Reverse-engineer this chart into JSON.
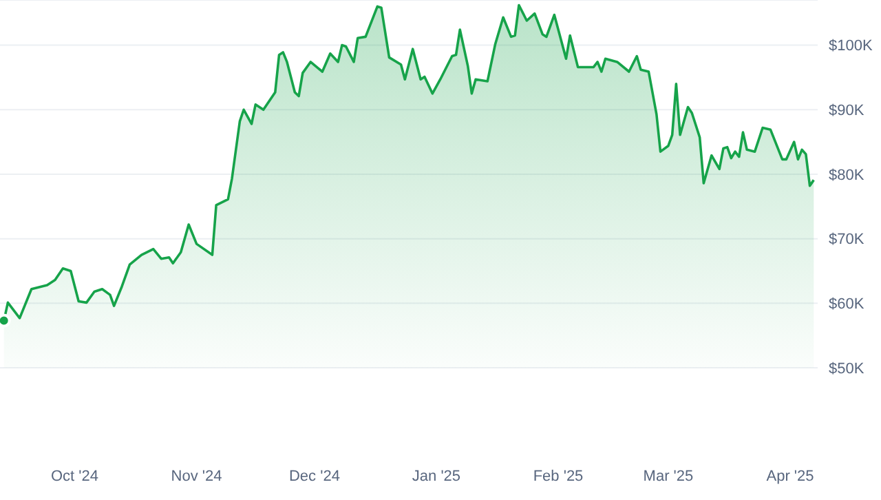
{
  "chart_data": {
    "type": "area",
    "x": [
      "2024-09-13",
      "2024-09-14",
      "2024-09-17",
      "2024-09-20",
      "2024-09-24",
      "2024-09-25",
      "2024-09-26",
      "2024-09-28",
      "2024-09-30",
      "2024-10-02",
      "2024-10-04",
      "2024-10-06",
      "2024-10-08",
      "2024-10-10",
      "2024-10-11",
      "2024-10-13",
      "2024-10-15",
      "2024-10-18",
      "2024-10-21",
      "2024-10-23",
      "2024-10-25",
      "2024-10-26",
      "2024-10-28",
      "2024-10-30",
      "2024-11-01",
      "2024-11-05",
      "2024-11-06",
      "2024-11-09",
      "2024-11-10",
      "2024-11-12",
      "2024-11-13",
      "2024-11-15",
      "2024-11-16",
      "2024-11-18",
      "2024-11-21",
      "2024-11-22",
      "2024-11-23",
      "2024-11-24",
      "2024-11-26",
      "2024-11-27",
      "2024-11-28",
      "2024-11-30",
      "2024-12-02",
      "2024-12-03",
      "2024-12-05",
      "2024-12-07",
      "2024-12-08",
      "2024-12-09",
      "2024-12-11",
      "2024-12-12",
      "2024-12-14",
      "2024-12-17",
      "2024-12-18",
      "2024-12-20",
      "2024-12-23",
      "2024-12-24",
      "2024-12-26",
      "2024-12-28",
      "2024-12-29",
      "2024-12-31",
      "2025-01-02",
      "2025-01-05",
      "2025-01-06",
      "2025-01-07",
      "2025-01-09",
      "2025-01-10",
      "2025-01-11",
      "2025-01-14",
      "2025-01-16",
      "2025-01-18",
      "2025-01-20",
      "2025-01-21",
      "2025-01-22",
      "2025-01-24",
      "2025-01-26",
      "2025-01-28",
      "2025-01-29",
      "2025-01-31",
      "2025-02-03",
      "2025-02-04",
      "2025-02-06",
      "2025-02-10",
      "2025-02-11",
      "2025-02-12",
      "2025-02-13",
      "2025-02-16",
      "2025-02-19",
      "2025-02-21",
      "2025-02-22",
      "2025-02-24",
      "2025-02-26",
      "2025-02-27",
      "2025-03-01",
      "2025-03-02",
      "2025-03-03",
      "2025-03-04",
      "2025-03-06",
      "2025-03-07",
      "2025-03-09",
      "2025-03-10",
      "2025-03-12",
      "2025-03-14",
      "2025-03-15",
      "2025-03-16",
      "2025-03-17",
      "2025-03-18",
      "2025-03-19",
      "2025-03-20",
      "2025-03-21",
      "2025-03-23",
      "2025-03-25",
      "2025-03-27",
      "2025-03-30",
      "2025-03-31",
      "2025-04-02",
      "2025-04-03",
      "2025-04-04",
      "2025-04-05",
      "2025-04-06",
      "2025-04-07"
    ],
    "series": [
      {
        "color": "#16a34a",
        "values": [
          57300,
          60100,
          57700,
          62200,
          62800,
          63200,
          63600,
          65400,
          65000,
          60300,
          60100,
          61800,
          62200,
          61300,
          59600,
          62600,
          66000,
          67500,
          68400,
          66900,
          67100,
          66200,
          67900,
          72200,
          69200,
          67500,
          75200,
          76100,
          79300,
          88200,
          90000,
          87800,
          90800,
          90000,
          92700,
          98500,
          98900,
          97400,
          92700,
          92100,
          95700,
          97400,
          96400,
          95900,
          98700,
          97400,
          100000,
          99800,
          97400,
          101100,
          101300,
          106000,
          105800,
          98100,
          97000,
          94700,
          99400,
          94700,
          95100,
          92500,
          94700,
          98300,
          98500,
          102400,
          96800,
          92500,
          94700,
          94400,
          100200,
          104300,
          101300,
          101500,
          106200,
          103800,
          104900,
          101700,
          101300,
          104700,
          97900,
          101500,
          96600,
          96600,
          97400,
          95900,
          97900,
          97400,
          95900,
          98300,
          96200,
          95900,
          89300,
          83500,
          84400,
          86100,
          94000,
          86100,
          90400,
          89500,
          85700,
          78600,
          82900,
          80800,
          84000,
          84200,
          82500,
          83500,
          82700,
          86500,
          83800,
          83500,
          87200,
          86900,
          82300,
          82300,
          85000,
          82300,
          83800,
          83100,
          78200,
          79100
        ]
      }
    ],
    "xlim": [
      "2024-09-12",
      "2025-04-08"
    ],
    "xticks": [
      {
        "value": "2024-10-01",
        "label": "Oct '24"
      },
      {
        "value": "2024-11-01",
        "label": "Nov '24"
      },
      {
        "value": "2024-12-01",
        "label": "Dec '24"
      },
      {
        "value": "2025-01-01",
        "label": "Jan '25"
      },
      {
        "value": "2025-02-01",
        "label": "Feb '25"
      },
      {
        "value": "2025-03-01",
        "label": "Mar '25"
      },
      {
        "value": "2025-04-01",
        "label": "Apr '25"
      }
    ],
    "ylim": [
      50000,
      107000
    ],
    "yticks": [
      {
        "value": 50000,
        "label": "$50K"
      },
      {
        "value": 60000,
        "label": "$60K"
      },
      {
        "value": 70000,
        "label": "$70K"
      },
      {
        "value": 80000,
        "label": "$80K"
      },
      {
        "value": 90000,
        "label": "$90K"
      },
      {
        "value": 100000,
        "label": "$100K"
      }
    ],
    "grid": "y"
  }
}
